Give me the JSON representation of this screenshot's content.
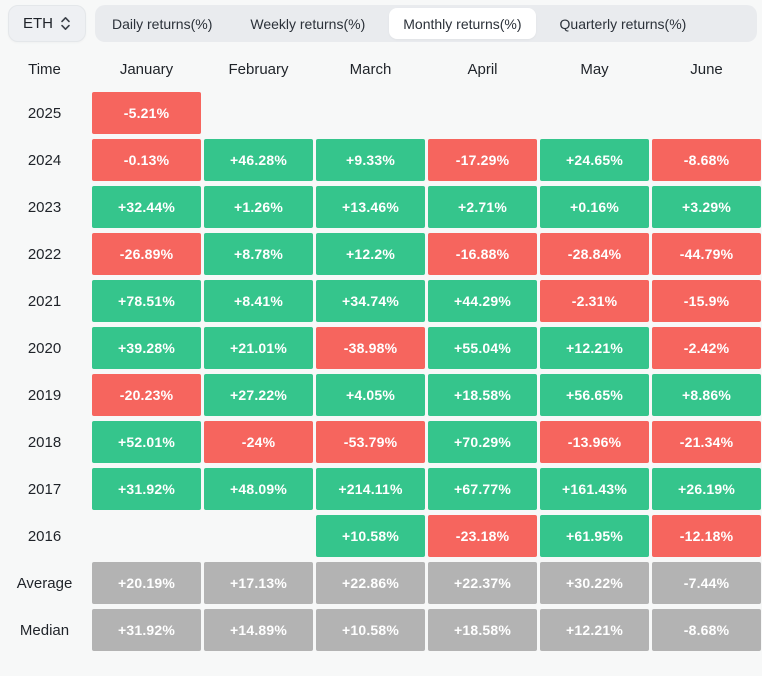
{
  "selector": {
    "label": "ETH",
    "icon": "chevron-updown-icon"
  },
  "tabs": [
    {
      "label": "Daily returns(%)",
      "active": false
    },
    {
      "label": "Weekly returns(%)",
      "active": false
    },
    {
      "label": "Monthly returns(%)",
      "active": true
    },
    {
      "label": "Quarterly returns(%)",
      "active": false
    }
  ],
  "colors": {
    "positive": "#35c58c",
    "negative": "#f6655e",
    "summary": "#b3b3b3",
    "page_bg": "#f7f8f8",
    "tabbar_bg": "#e9ebee",
    "active_tab_bg": "#ffffff",
    "cell_text": "#ffffff",
    "label_text": "#1f2329"
  },
  "chart_data": {
    "type": "heatmap",
    "time_header": "Time",
    "columns": [
      "January",
      "February",
      "March",
      "April",
      "May",
      "June"
    ],
    "rows": [
      {
        "label": "2025",
        "kind": "year",
        "cells": [
          "-5.21%",
          "",
          "",
          "",
          "",
          ""
        ]
      },
      {
        "label": "2024",
        "kind": "year",
        "cells": [
          "-0.13%",
          "+46.28%",
          "+9.33%",
          "-17.29%",
          "+24.65%",
          "-8.68%"
        ]
      },
      {
        "label": "2023",
        "kind": "year",
        "cells": [
          "+32.44%",
          "+1.26%",
          "+13.46%",
          "+2.71%",
          "+0.16%",
          "+3.29%"
        ]
      },
      {
        "label": "2022",
        "kind": "year",
        "cells": [
          "-26.89%",
          "+8.78%",
          "+12.2%",
          "-16.88%",
          "-28.84%",
          "-44.79%"
        ]
      },
      {
        "label": "2021",
        "kind": "year",
        "cells": [
          "+78.51%",
          "+8.41%",
          "+34.74%",
          "+44.29%",
          "-2.31%",
          "-15.9%"
        ]
      },
      {
        "label": "2020",
        "kind": "year",
        "cells": [
          "+39.28%",
          "+21.01%",
          "-38.98%",
          "+55.04%",
          "+12.21%",
          "-2.42%"
        ]
      },
      {
        "label": "2019",
        "kind": "year",
        "cells": [
          "-20.23%",
          "+27.22%",
          "+4.05%",
          "+18.58%",
          "+56.65%",
          "+8.86%"
        ]
      },
      {
        "label": "2018",
        "kind": "year",
        "cells": [
          "+52.01%",
          "-24%",
          "-53.79%",
          "+70.29%",
          "-13.96%",
          "-21.34%"
        ]
      },
      {
        "label": "2017",
        "kind": "year",
        "cells": [
          "+31.92%",
          "+48.09%",
          "+214.11%",
          "+67.77%",
          "+161.43%",
          "+26.19%"
        ]
      },
      {
        "label": "2016",
        "kind": "year",
        "cells": [
          "",
          "",
          "+10.58%",
          "-23.18%",
          "+61.95%",
          "-12.18%"
        ]
      },
      {
        "label": "Average",
        "kind": "summary",
        "cells": [
          "+20.19%",
          "+17.13%",
          "+22.86%",
          "+22.37%",
          "+30.22%",
          "-7.44%"
        ]
      },
      {
        "label": "Median",
        "kind": "summary",
        "cells": [
          "+31.92%",
          "+14.89%",
          "+10.58%",
          "+18.58%",
          "+12.21%",
          "-8.68%"
        ]
      }
    ]
  }
}
